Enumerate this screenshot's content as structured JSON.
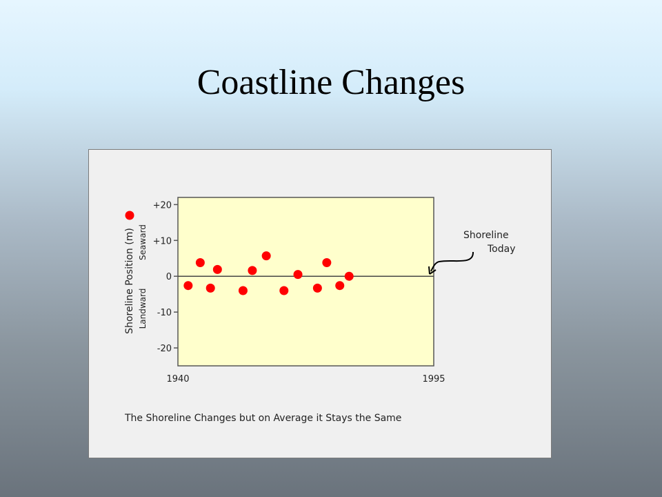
{
  "slide": {
    "title": "Coastline Changes"
  },
  "chart_data": {
    "type": "scatter",
    "x_ticks": [
      "1940",
      "1995"
    ],
    "xlim": [
      1940,
      1995
    ],
    "ylim": [
      -25,
      22
    ],
    "y_ticks": [
      {
        "value": 20,
        "label": "+20"
      },
      {
        "value": 10,
        "label": "+10"
      },
      {
        "value": 0,
        "label": "0"
      },
      {
        "value": -10,
        "label": "-10"
      },
      {
        "value": -20,
        "label": "-20"
      }
    ],
    "ylabel": "Shoreline Position (m)",
    "ylabel_upper": "Seaward",
    "ylabel_lower": "Landward",
    "zero_line": true,
    "plot_background": "#ffffcc",
    "point_color": "#ff0000",
    "points": [
      {
        "x": 1942.2,
        "y": -2.6
      },
      {
        "x": 1944.8,
        "y": 3.8
      },
      {
        "x": 1947.0,
        "y": -3.3
      },
      {
        "x": 1948.5,
        "y": 1.9
      },
      {
        "x": 1954.0,
        "y": -4.0
      },
      {
        "x": 1956.0,
        "y": 1.6
      },
      {
        "x": 1959.0,
        "y": 5.7
      },
      {
        "x": 1962.8,
        "y": -4.0
      },
      {
        "x": 1965.8,
        "y": 0.5
      },
      {
        "x": 1970.0,
        "y": -3.3
      },
      {
        "x": 1972.0,
        "y": 3.8
      },
      {
        "x": 1974.8,
        "y": -2.6
      },
      {
        "x": 1976.8,
        "y": 0.0
      }
    ],
    "annotation": {
      "line1": "Shoreline",
      "line2": "Today"
    },
    "caption": "The Shoreline Changes but on Average it Stays the Same"
  }
}
